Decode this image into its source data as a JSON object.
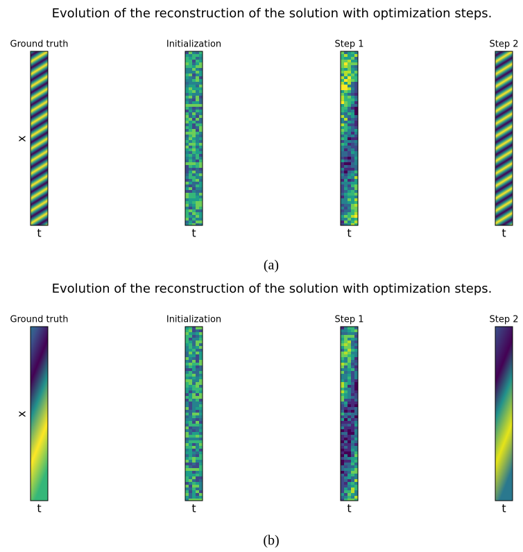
{
  "figures": [
    {
      "title": "Evolution of the reconstruction of the solution with optimization steps.",
      "ylabel": "x",
      "panels": [
        {
          "title": "Ground truth",
          "xlabel": "t"
        },
        {
          "title": "Initialization",
          "xlabel": "t"
        },
        {
          "title": "Step 1",
          "xlabel": "t"
        },
        {
          "title": "Step 2",
          "xlabel": "t"
        }
      ],
      "caption": "(a)"
    },
    {
      "title": "Evolution of the reconstruction of the solution with optimization steps.",
      "ylabel": "x",
      "panels": [
        {
          "title": "Ground truth",
          "xlabel": "t"
        },
        {
          "title": "Initialization",
          "xlabel": "t"
        },
        {
          "title": "Step 1",
          "xlabel": "t"
        },
        {
          "title": "Step 2",
          "xlabel": "t"
        }
      ],
      "caption": "(b)"
    }
  ]
}
